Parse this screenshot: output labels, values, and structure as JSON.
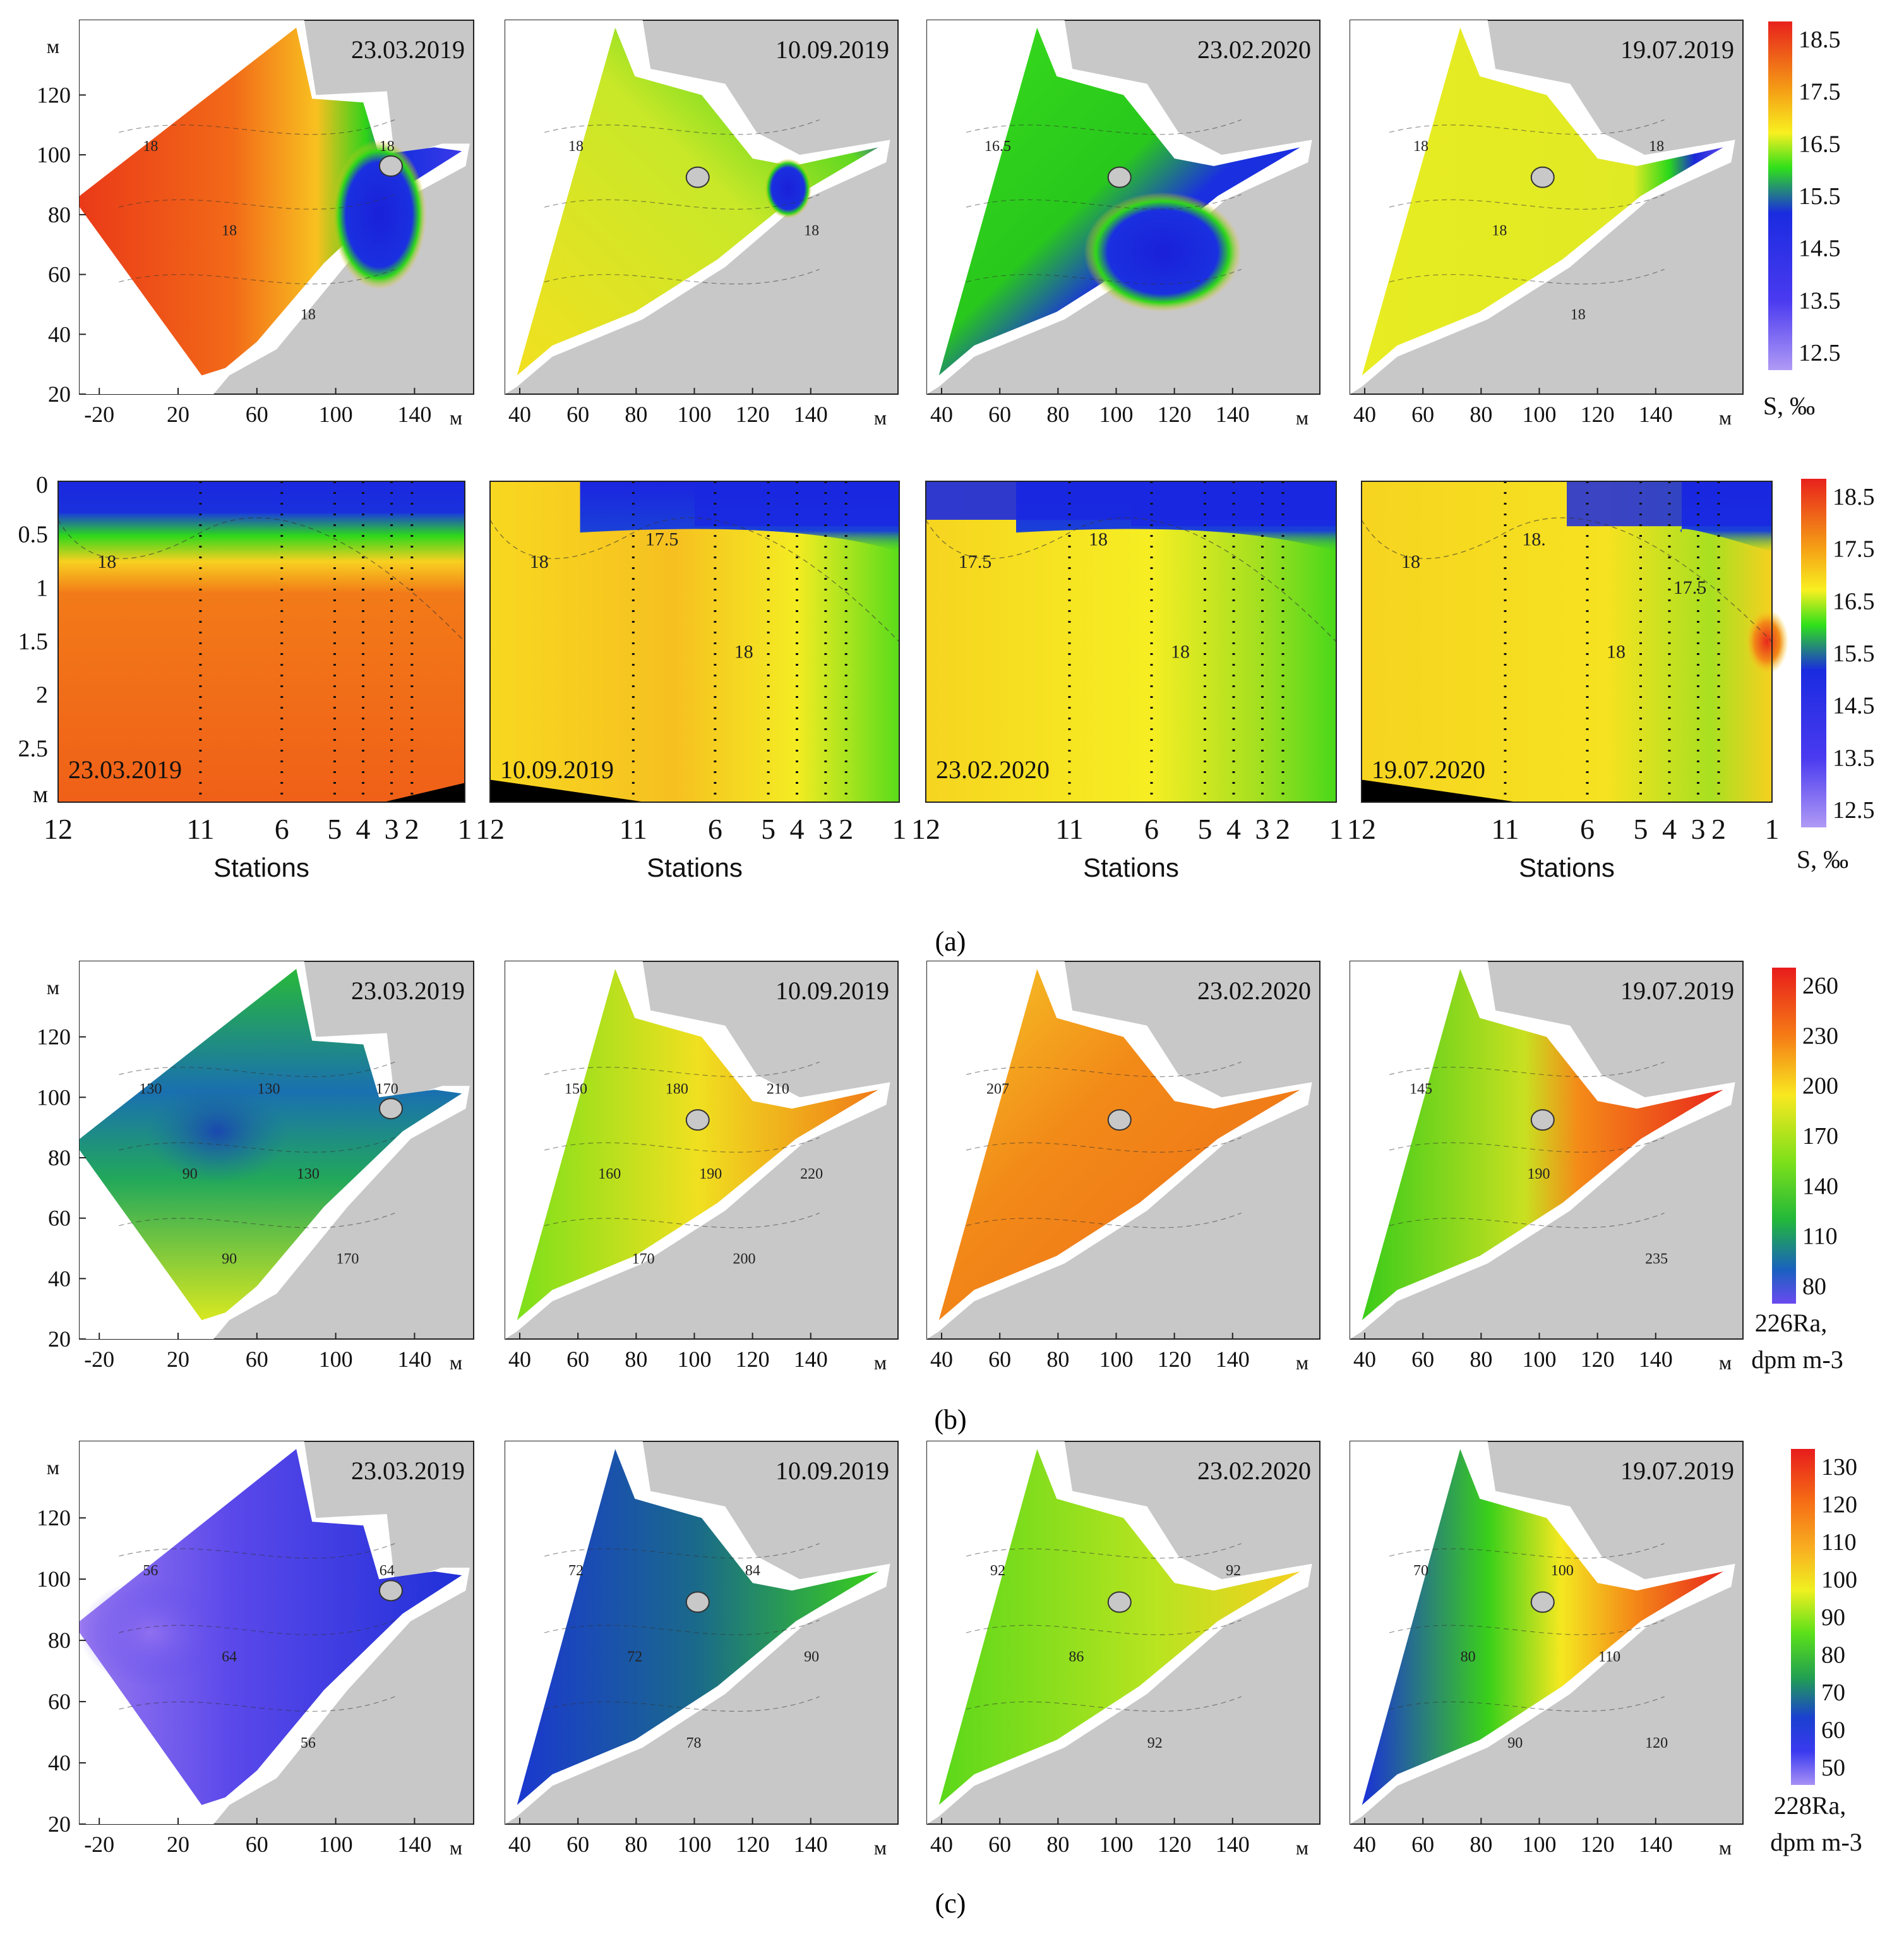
{
  "figure": {
    "labels": {
      "a": "(a)",
      "b": "(b)",
      "c": "(c)"
    },
    "axis_unit": "м",
    "stations_label": "Stations"
  },
  "colors": {
    "land": "#c8c8c8",
    "water_white": "#ffffff",
    "frame": "#222222",
    "bottom_black": "#000000"
  },
  "chart_data": [
    {
      "type": "heatmap",
      "panel": "a-map",
      "title": "23.03.2019",
      "xlabel": "м",
      "ylabel": "м",
      "xticks": [
        -20,
        20,
        60,
        100,
        140
      ],
      "yticks": [
        20,
        40,
        60,
        80,
        100,
        120
      ],
      "xlim": [
        -30,
        170
      ],
      "ylim": [
        20,
        145
      ],
      "contour_labels": [
        "18",
        "18",
        "18",
        "18"
      ],
      "colorscale": "salinity",
      "background_value": 18.3
    },
    {
      "type": "heatmap",
      "panel": "a-map",
      "title": "10.09.2019",
      "xlabel": "м",
      "ylabel": "м",
      "xticks": [
        40,
        60,
        80,
        100,
        120,
        140
      ],
      "yticks": [],
      "xlim": [
        35,
        170
      ],
      "ylim": [
        20,
        145
      ],
      "contour_labels": [
        "18",
        "18"
      ],
      "colorscale": "salinity",
      "background_value": 17.9
    },
    {
      "type": "heatmap",
      "panel": "a-map",
      "title": "23.02.2020",
      "xlabel": "м",
      "ylabel": "м",
      "xticks": [
        40,
        60,
        80,
        100,
        120,
        140
      ],
      "yticks": [],
      "xlim": [
        35,
        170
      ],
      "ylim": [
        20,
        145
      ],
      "contour_labels": [
        "16.5"
      ],
      "colorscale": "salinity",
      "background_value": 17.5
    },
    {
      "type": "heatmap",
      "panel": "a-map",
      "title": "19.07.2019",
      "xlabel": "м",
      "ylabel": "м",
      "xticks": [
        40,
        60,
        80,
        100,
        120,
        140
      ],
      "yticks": [],
      "xlim": [
        35,
        170
      ],
      "ylim": [
        20,
        145
      ],
      "contour_labels": [
        "18",
        "18",
        "18",
        "18"
      ],
      "colorscale": "salinity",
      "background_value": 18.0
    },
    {
      "type": "heatmap",
      "panel": "a-section",
      "title": "23.03.2019",
      "xlabel": "Stations",
      "ylabel": "м",
      "stations": [
        "12",
        "11",
        "6",
        "5",
        "4",
        "3",
        "2",
        "1"
      ],
      "yticks": [
        "0",
        "0.5",
        "1",
        "1.5",
        "2",
        "2.5",
        "м"
      ],
      "contour_labels": [
        "18"
      ],
      "colorscale": "salinity",
      "background_value": 18.4
    },
    {
      "type": "heatmap",
      "panel": "a-section",
      "title": "10.09.2019",
      "xlabel": "Stations",
      "ylabel": "м",
      "stations": [
        "12",
        "11",
        "6",
        "5",
        "4",
        "3",
        "2",
        "1"
      ],
      "contour_labels": [
        "18",
        "17.5",
        "18"
      ],
      "colorscale": "salinity",
      "background_value": 18.1
    },
    {
      "type": "heatmap",
      "panel": "a-section",
      "title": "23.02.2020",
      "xlabel": "Stations",
      "ylabel": "м",
      "stations": [
        "12",
        "11",
        "6",
        "5",
        "4",
        "3",
        "2",
        "1"
      ],
      "contour_labels": [
        "17.5",
        "18",
        "18"
      ],
      "colorscale": "salinity",
      "background_value": 17.9
    },
    {
      "type": "heatmap",
      "panel": "a-section",
      "title": "19.07.2020",
      "xlabel": "Stations",
      "ylabel": "м",
      "stations": [
        "12",
        "11",
        "6",
        "5",
        "4",
        "3",
        "2",
        "1"
      ],
      "contour_labels": [
        "18",
        "18.",
        "18",
        "17.5"
      ],
      "colorscale": "salinity",
      "background_value": 18.0
    },
    {
      "type": "heatmap",
      "panel": "b-map",
      "title": "23.03.2019",
      "xlabel": "м",
      "ylabel": "м",
      "xticks": [
        -20,
        20,
        60,
        100,
        140
      ],
      "yticks": [
        20,
        40,
        60,
        80,
        100,
        120
      ],
      "contour_labels": [
        "130",
        "90",
        "90",
        "130",
        "130",
        "170",
        "170"
      ],
      "colorscale": "ra226",
      "background_value": 130
    },
    {
      "type": "heatmap",
      "panel": "b-map",
      "title": "10.09.2019",
      "xlabel": "м",
      "xticks": [
        40,
        60,
        80,
        100,
        120,
        140
      ],
      "contour_labels": [
        "150",
        "160",
        "170",
        "180",
        "190",
        "200",
        "210",
        "220"
      ],
      "colorscale": "ra226",
      "background_value": 185
    },
    {
      "type": "heatmap",
      "panel": "b-map",
      "title": "23.02.2020",
      "xlabel": "м",
      "xticks": [
        40,
        60,
        80,
        100,
        120,
        140
      ],
      "contour_labels": [
        "207"
      ],
      "colorscale": "ra226",
      "background_value": 210
    },
    {
      "type": "heatmap",
      "panel": "b-map",
      "title": "19.07.2019",
      "xlabel": "м",
      "xticks": [
        40,
        60,
        80,
        100,
        120,
        140
      ],
      "contour_labels": [
        "145",
        "190",
        "235"
      ],
      "colorscale": "ra226",
      "background_value": 180
    },
    {
      "type": "heatmap",
      "panel": "c-map",
      "title": "23.03.2019",
      "xlabel": "м",
      "ylabel": "м",
      "xticks": [
        -20,
        20,
        60,
        100,
        140
      ],
      "yticks": [
        20,
        40,
        60,
        80,
        100,
        120
      ],
      "contour_labels": [
        "56",
        "64",
        "56",
        "64"
      ],
      "colorscale": "ra228",
      "background_value": 60
    },
    {
      "type": "heatmap",
      "panel": "c-map",
      "title": "10.09.2019",
      "xlabel": "м",
      "xticks": [
        40,
        60,
        80,
        100,
        120,
        140
      ],
      "contour_labels": [
        "72",
        "72",
        "78",
        "84",
        "90"
      ],
      "colorscale": "ra228",
      "background_value": 75
    },
    {
      "type": "heatmap",
      "panel": "c-map",
      "title": "23.02.2020",
      "xlabel": "м",
      "xticks": [
        40,
        60,
        80,
        100,
        120,
        140
      ],
      "contour_labels": [
        "92",
        "86",
        "92",
        "92"
      ],
      "colorscale": "ra228",
      "background_value": 90
    },
    {
      "type": "heatmap",
      "panel": "c-map",
      "title": "19.07.2019",
      "xlabel": "м",
      "xticks": [
        40,
        60,
        80,
        100,
        120,
        140
      ],
      "contour_labels": [
        "70",
        "80",
        "90",
        "100",
        "110",
        "120"
      ],
      "colorscale": "ra228",
      "background_value": 95
    }
  ],
  "colorbars": {
    "salinity": {
      "ticks": [
        "18.5",
        "17.5",
        "16.5",
        "15.5",
        "14.5",
        "13.5",
        "12.5"
      ],
      "label": "S, ‰",
      "colors": [
        "#e8211c",
        "#f5a015",
        "#f8f020",
        "#2fe01a",
        "#1a2be0",
        "#4a3af0",
        "#b09af5"
      ]
    },
    "ra226": {
      "ticks": [
        "260",
        "230",
        "200",
        "170",
        "140",
        "110",
        "80"
      ],
      "label_top": "226Ra,",
      "label_bottom": "dpm m-3",
      "colors": [
        "#e81c1c",
        "#f57a15",
        "#f8e820",
        "#7ce01a",
        "#22b83a",
        "#1a60c0",
        "#6a4af0"
      ]
    },
    "ra228": {
      "ticks": [
        "130",
        "120",
        "110",
        "100",
        "90",
        "80",
        "70",
        "60",
        "50"
      ],
      "label_top": "228Ra,",
      "label_bottom": "dpm m-3",
      "colors": [
        "#e81c1c",
        "#f56a15",
        "#f8b020",
        "#f0f020",
        "#5ae01a",
        "#22a050",
        "#1a40d0",
        "#3a3af0",
        "#a890f5"
      ]
    }
  }
}
